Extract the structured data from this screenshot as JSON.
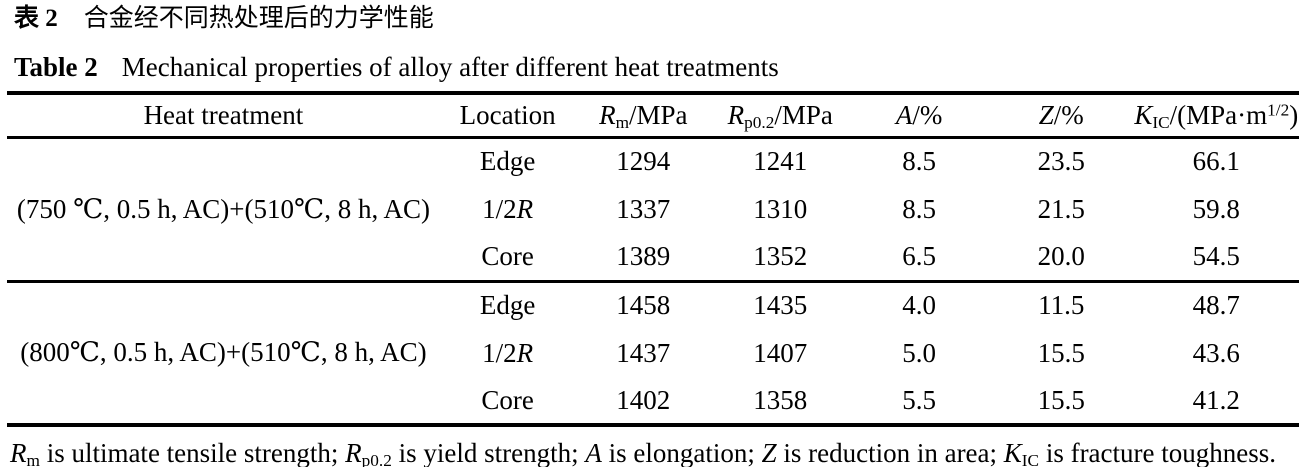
{
  "colors": {
    "text": "#000000",
    "background": "#ffffff"
  },
  "titles": {
    "cn": {
      "label": "表 2",
      "text": "合金经不同热处理后的力学性能"
    },
    "en": {
      "label": "Table 2",
      "text": "Mechanical properties of alloy after different heat treatments"
    }
  },
  "table": {
    "columns": [
      {
        "key": "heat",
        "label": [
          {
            "t": "Heat treatment"
          }
        ]
      },
      {
        "key": "location",
        "label": [
          {
            "t": "Location"
          }
        ]
      },
      {
        "key": "rm",
        "label": [
          {
            "t": "R",
            "s": "i"
          },
          {
            "t": "m",
            "s": "sub"
          },
          {
            "t": "/MPa"
          }
        ]
      },
      {
        "key": "rp02",
        "label": [
          {
            "t": "R",
            "s": "i"
          },
          {
            "t": "p0.2",
            "s": "sub"
          },
          {
            "t": "/MPa"
          }
        ]
      },
      {
        "key": "a",
        "label": [
          {
            "t": "A",
            "s": "i"
          },
          {
            "t": "/%"
          }
        ]
      },
      {
        "key": "z",
        "label": [
          {
            "t": "Z",
            "s": "i"
          },
          {
            "t": "/%"
          }
        ]
      },
      {
        "key": "kic",
        "label": [
          {
            "t": "K",
            "s": "i"
          },
          {
            "t": "IC",
            "s": "sub"
          },
          {
            "t": "/(MPa·m"
          },
          {
            "t": "1/2",
            "s": "sup"
          },
          {
            "t": ")"
          }
        ]
      }
    ],
    "groups": [
      {
        "heat_treatment": "(750 ℃, 0.5 h, AC)+(510℃, 8 h, AC)",
        "rows": [
          {
            "location": [
              {
                "t": "Edge"
              }
            ],
            "rm": "1294",
            "rp02": "1241",
            "a": "8.5",
            "z": "23.5",
            "kic": "66.1"
          },
          {
            "location": [
              {
                "t": "1/2"
              },
              {
                "t": "R",
                "s": "i"
              }
            ],
            "rm": "1337",
            "rp02": "1310",
            "a": "8.5",
            "z": "21.5",
            "kic": "59.8"
          },
          {
            "location": [
              {
                "t": "Core"
              }
            ],
            "rm": "1389",
            "rp02": "1352",
            "a": "6.5",
            "z": "20.0",
            "kic": "54.5"
          }
        ]
      },
      {
        "heat_treatment": "(800℃, 0.5 h, AC)+(510℃, 8 h, AC)",
        "rows": [
          {
            "location": [
              {
                "t": "Edge"
              }
            ],
            "rm": "1458",
            "rp02": "1435",
            "a": "4.0",
            "z": "11.5",
            "kic": "48.7"
          },
          {
            "location": [
              {
                "t": "1/2"
              },
              {
                "t": "R",
                "s": "i"
              }
            ],
            "rm": "1437",
            "rp02": "1407",
            "a": "5.0",
            "z": "15.5",
            "kic": "43.6"
          },
          {
            "location": [
              {
                "t": "Core"
              }
            ],
            "rm": "1402",
            "rp02": "1358",
            "a": "5.5",
            "z": "15.5",
            "kic": "41.2"
          }
        ]
      }
    ]
  },
  "footnote": {
    "segments": [
      {
        "t": "R",
        "s": "i"
      },
      {
        "t": "m",
        "s": "sub"
      },
      {
        "t": " is ultimate tensile strength; "
      },
      {
        "t": "R",
        "s": "i"
      },
      {
        "t": "p0.2",
        "s": "sub"
      },
      {
        "t": " is yield strength; "
      },
      {
        "t": "A",
        "s": "i"
      },
      {
        "t": " is elongation; "
      },
      {
        "t": "Z",
        "s": "i"
      },
      {
        "t": " is reduction in area; "
      },
      {
        "t": "K",
        "s": "i"
      },
      {
        "t": "IC",
        "s": "sub"
      },
      {
        "t": " is fracture toughness."
      }
    ]
  }
}
